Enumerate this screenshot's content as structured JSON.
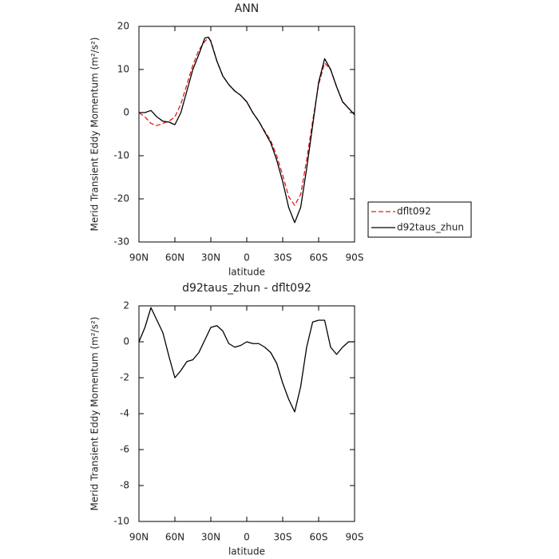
{
  "chart_data": [
    {
      "type": "line",
      "title": "ANN",
      "x_label": "latitude",
      "y_label": "Merid Transient Eddy Momentum (m²/s²)",
      "x": [
        90,
        85,
        80,
        75,
        70,
        65,
        60,
        55,
        50,
        45,
        40,
        35,
        32,
        30,
        25,
        20,
        15,
        10,
        5,
        0,
        -5,
        -10,
        -15,
        -20,
        -25,
        -30,
        -35,
        -40,
        -45,
        -50,
        -55,
        -60,
        -65,
        -70,
        -75,
        -80,
        -85,
        -90
      ],
      "series": [
        {
          "name": "dflt092",
          "color": "#e41a1c",
          "dash": true,
          "values": [
            0,
            -1,
            -2.5,
            -3,
            -2.5,
            -2,
            -1,
            2,
            6.5,
            11,
            14.5,
            16.5,
            17.3,
            16.7,
            12,
            8.5,
            6.5,
            5,
            4,
            2.5,
            0,
            -2,
            -4.3,
            -6.5,
            -10,
            -14.5,
            -19.5,
            -21.5,
            -19,
            -11,
            -2,
            6.5,
            11.5,
            10,
            6,
            2.5,
            1,
            -0.5
          ]
        },
        {
          "name": "d92taus_zhun",
          "color": "#000000",
          "dash": false,
          "values": [
            0,
            0,
            0.5,
            -1,
            -2,
            -2.2,
            -2.8,
            0,
            5,
            10,
            13.5,
            17.3,
            17.5,
            16.5,
            12,
            8.5,
            6.5,
            5,
            4,
            2.5,
            0,
            -2,
            -4.5,
            -7,
            -11,
            -16,
            -22,
            -25.5,
            -22,
            -13,
            -3,
            7,
            12.5,
            10,
            6,
            2.5,
            1,
            -0.5
          ]
        }
      ],
      "xlim": [
        90,
        -90
      ],
      "xticks": [
        {
          "value": 90,
          "label": "90N"
        },
        {
          "value": 60,
          "label": "60N"
        },
        {
          "value": 30,
          "label": "30N"
        },
        0,
        {
          "value": -30,
          "label": "30S"
        },
        {
          "value": -60,
          "label": "60S"
        },
        {
          "value": -90,
          "label": "90S"
        }
      ],
      "ylim": [
        -30,
        20
      ],
      "yticks": [
        -30,
        -20,
        -10,
        0,
        10,
        20
      ],
      "legend": "right"
    },
    {
      "type": "line",
      "title": "d92taus_zhun - dflt092",
      "x_label": "latitude",
      "y_label": "Merid Transient Eddy Momentum (m²/s²)",
      "x": [
        90,
        85,
        80,
        75,
        70,
        65,
        60,
        55,
        50,
        45,
        40,
        35,
        30,
        25,
        20,
        15,
        10,
        5,
        0,
        -5,
        -10,
        -15,
        -20,
        -25,
        -30,
        -35,
        -40,
        -45,
        -50,
        -55,
        -60,
        -65,
        -70,
        -75,
        -80,
        -85,
        -90
      ],
      "series": [
        {
          "color": "#000000",
          "dash": false,
          "values": [
            0,
            0.8,
            1.9,
            1.2,
            0.5,
            -0.8,
            -2,
            -1.6,
            -1.1,
            -1,
            -0.6,
            0.1,
            0.8,
            0.9,
            0.6,
            -0.1,
            -0.3,
            -0.2,
            0,
            -0.1,
            -0.1,
            -0.3,
            -0.6,
            -1.2,
            -2.3,
            -3.2,
            -3.9,
            -2.5,
            -0.3,
            1.1,
            1.2,
            1.2,
            -0.3,
            -0.7,
            -0.3,
            0,
            0
          ]
        }
      ],
      "xlim": [
        90,
        -90
      ],
      "xticks": [
        {
          "value": 90,
          "label": "90N"
        },
        {
          "value": 60,
          "label": "60N"
        },
        {
          "value": 30,
          "label": "30N"
        },
        0,
        {
          "value": -30,
          "label": "30S"
        },
        {
          "value": -60,
          "label": "60S"
        },
        {
          "value": -90,
          "label": "90S"
        }
      ],
      "ylim": [
        -10,
        2
      ],
      "yticks": [
        -10,
        -8,
        -6,
        -4,
        -2,
        0,
        2
      ]
    }
  ]
}
